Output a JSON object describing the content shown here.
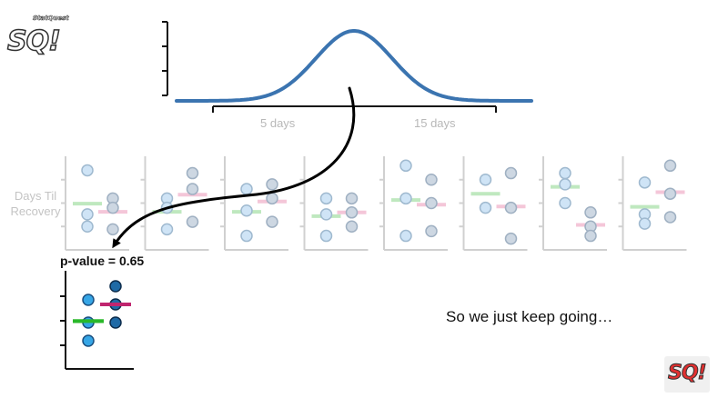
{
  "logo_top": {
    "text": "SQ!",
    "small_text": "StatQuest"
  },
  "logo_bottom": {
    "text": "SQ!"
  },
  "distribution": {
    "tick_labels": [
      "5 days",
      "15 days"
    ]
  },
  "y_axis_label": "Days Til Recovery",
  "p_value_label": "p-value = 0.65",
  "caption": "So we just keep going…",
  "colors": {
    "curve": "#3b74b0",
    "arrow": "#000000",
    "faded_blue": "#cfe4f6",
    "faded_gray": "#cdd7e2",
    "faded_green": "#bfe8bf",
    "faded_pink": "#f4c6d8",
    "result_light_blue": "#36a6e6",
    "result_dark_blue": "#1f6aa6",
    "result_green": "#2ab82a",
    "result_magenta": "#c0256f"
  },
  "experiments": [
    {
      "light": [
        [
          0,
          0.15
        ],
        [
          0,
          0.62
        ],
        [
          0,
          0.75
        ]
      ],
      "dark": [
        [
          1,
          0.45
        ],
        [
          1,
          0.55
        ],
        [
          1,
          0.78
        ]
      ]
    },
    {
      "light": [
        [
          0,
          0.45
        ],
        [
          0,
          0.55
        ],
        [
          0,
          0.78
        ]
      ],
      "dark": [
        [
          1,
          0.18
        ],
        [
          1,
          0.35
        ],
        [
          1,
          0.7
        ]
      ]
    },
    {
      "light": [
        [
          0,
          0.35
        ],
        [
          0,
          0.58
        ],
        [
          0,
          0.85
        ]
      ],
      "dark": [
        [
          1,
          0.3
        ],
        [
          1,
          0.45
        ],
        [
          1,
          0.7
        ]
      ]
    },
    {
      "light": [
        [
          0,
          0.45
        ],
        [
          0,
          0.62
        ],
        [
          0,
          0.85
        ]
      ],
      "dark": [
        [
          1,
          0.45
        ],
        [
          1,
          0.6
        ],
        [
          1,
          0.75
        ]
      ]
    },
    {
      "light": [
        [
          0,
          0.1
        ],
        [
          0,
          0.45
        ],
        [
          0,
          0.85
        ]
      ],
      "dark": [
        [
          1,
          0.25
        ],
        [
          1,
          0.5
        ],
        [
          1,
          0.8
        ]
      ]
    },
    {
      "light": [
        [
          0,
          0.25
        ],
        [
          0,
          0.55
        ]
      ],
      "dark": [
        [
          1,
          0.18
        ],
        [
          1,
          0.55
        ],
        [
          1,
          0.88
        ]
      ]
    },
    {
      "light": [
        [
          0,
          0.18
        ],
        [
          0,
          0.3
        ],
        [
          0,
          0.5
        ]
      ],
      "dark": [
        [
          1,
          0.6
        ],
        [
          1,
          0.75
        ],
        [
          1,
          0.85
        ]
      ]
    },
    {
      "light": [
        [
          0,
          0.28
        ],
        [
          0,
          0.62
        ],
        [
          0,
          0.72
        ]
      ],
      "dark": [
        [
          1,
          0.1
        ],
        [
          1,
          0.4
        ],
        [
          1,
          0.65
        ]
      ]
    }
  ],
  "result_plot": {
    "light": [
      0.3,
      0.55,
      0.75
    ],
    "dark": [
      0.15,
      0.35,
      0.55
    ]
  }
}
